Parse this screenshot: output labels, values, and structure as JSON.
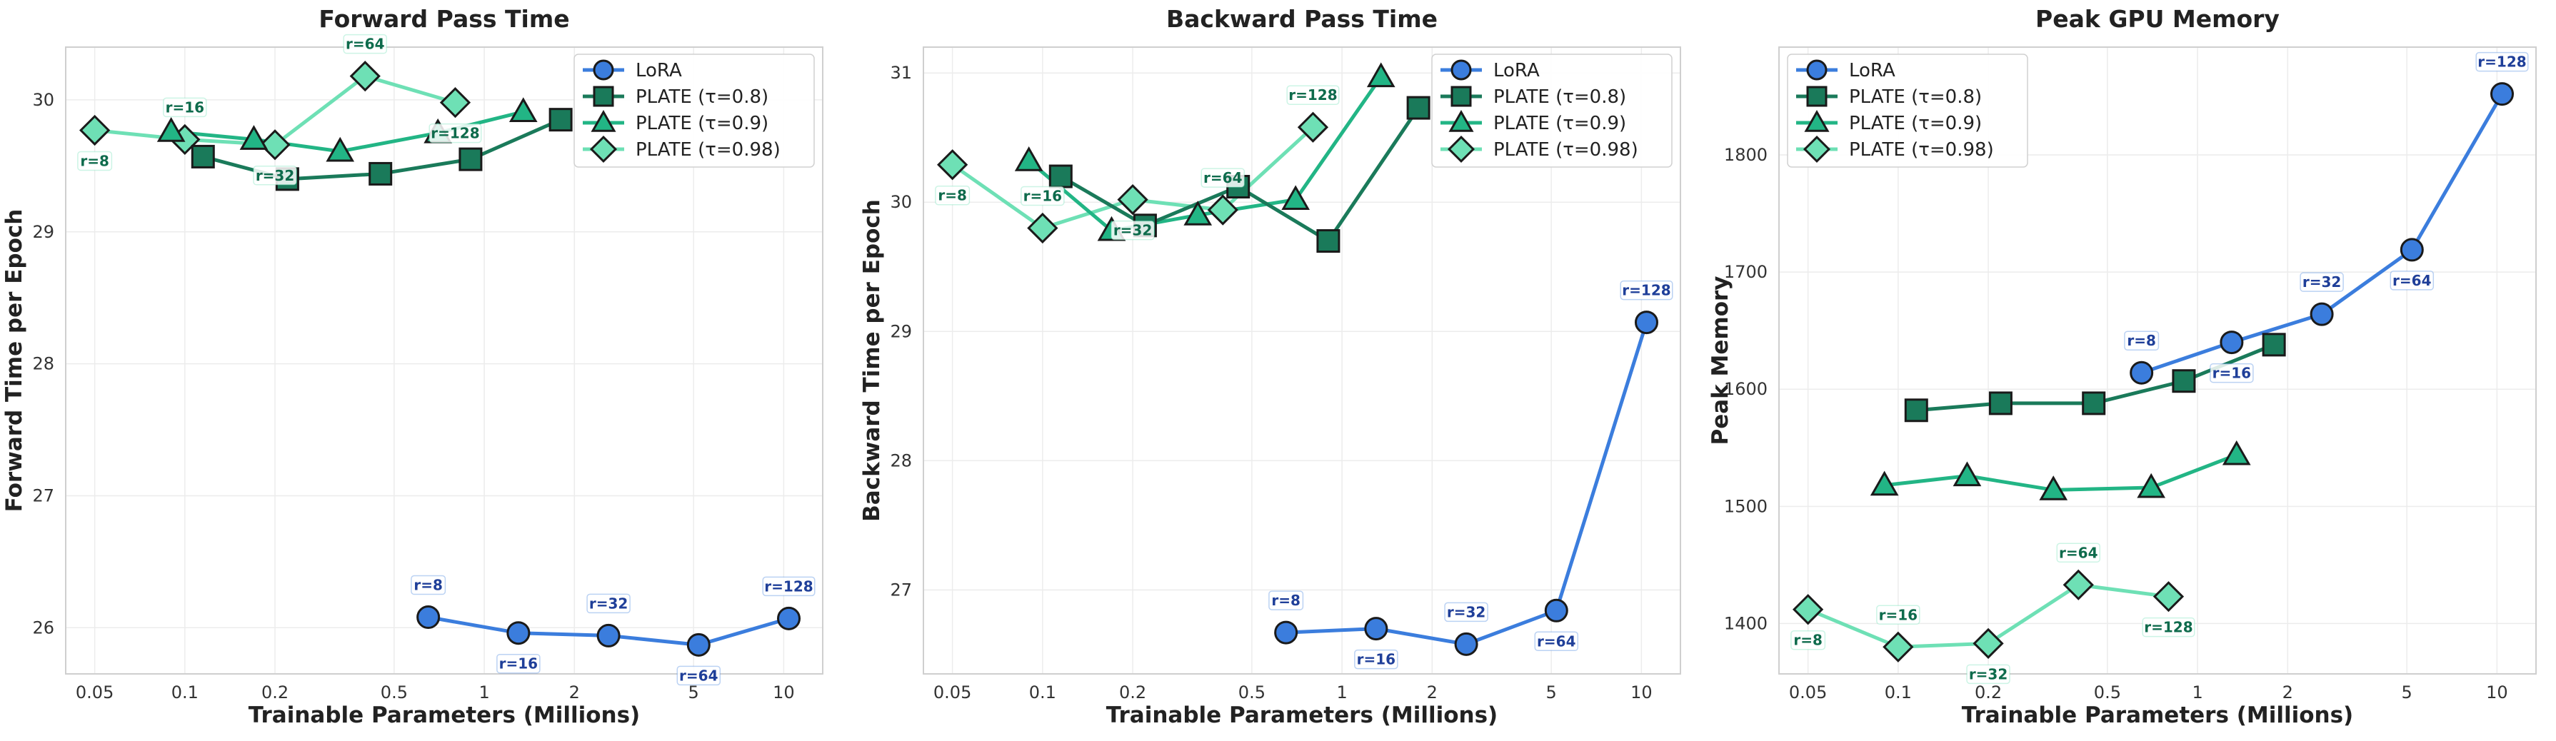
{
  "figure": {
    "background": "#ffffff"
  },
  "styles": {
    "LoRA": {
      "color": "#3b7ddd",
      "edge": "#1a1a1a",
      "marker": "circle",
      "label_color": "#1f3f99"
    },
    "PLATE (τ=0.8)": {
      "color": "#1a7a5a",
      "edge": "#1a1a1a",
      "marker": "square",
      "label_color": "#0e6b4c"
    },
    "PLATE (τ=0.9)": {
      "color": "#22b585",
      "edge": "#1a1a1a",
      "marker": "triangle",
      "label_color": "#0e6b4c"
    },
    "PLATE (τ=0.98)": {
      "color": "#6ee0b5",
      "edge": "#1a1a1a",
      "marker": "diamond",
      "label_color": "#0e6b4c"
    }
  },
  "chart_data": [
    {
      "type": "line",
      "title": "Forward Pass Time",
      "xlabel": "Trainable Parameters (Millions)",
      "ylabel": "Forward Time per Epoch",
      "xscale": "log",
      "xlim": [
        0.04,
        13.5
      ],
      "ylim": [
        25.65,
        30.4
      ],
      "xticks": [
        {
          "v": 0.05,
          "label": "0.05"
        },
        {
          "v": 0.1,
          "label": "0.1"
        },
        {
          "v": 0.2,
          "label": "0.2"
        },
        {
          "v": 0.5,
          "label": "0.5"
        },
        {
          "v": 1,
          "label": "1"
        },
        {
          "v": 2,
          "label": "2"
        },
        {
          "v": 5,
          "label": "5"
        },
        {
          "v": 10,
          "label": "10"
        }
      ],
      "yticks": [
        {
          "v": 26,
          "label": "26"
        },
        {
          "v": 27,
          "label": "27"
        },
        {
          "v": 28,
          "label": "28"
        },
        {
          "v": 29,
          "label": "29"
        },
        {
          "v": 30,
          "label": "30"
        }
      ],
      "grid": true,
      "legend": "top-right",
      "series": [
        {
          "name": "PLATE (τ=0.98)",
          "x": [
            0.05,
            0.1,
            0.2,
            0.4,
            0.8
          ],
          "y": [
            29.77,
            29.7,
            29.66,
            30.18,
            29.98
          ]
        },
        {
          "name": "PLATE (τ=0.9)",
          "x": [
            0.09,
            0.17,
            0.33,
            0.7,
            1.35
          ],
          "y": [
            29.76,
            29.7,
            29.61,
            29.75,
            29.91
          ]
        },
        {
          "name": "PLATE (τ=0.8)",
          "x": [
            0.115,
            0.22,
            0.45,
            0.9,
            1.8
          ],
          "y": [
            29.57,
            29.4,
            29.44,
            29.55,
            29.85
          ]
        },
        {
          "name": "LoRA",
          "x": [
            0.65,
            1.3,
            2.6,
            5.2,
            10.4
          ],
          "y": [
            26.08,
            25.96,
            25.94,
            25.87,
            26.07
          ]
        }
      ],
      "annotations": [
        {
          "text": "r=8",
          "series": "LoRA",
          "at": 0,
          "pos": "above"
        },
        {
          "text": "r=16",
          "series": "LoRA",
          "at": 1,
          "pos": "below"
        },
        {
          "text": "r=32",
          "series": "LoRA",
          "at": 2,
          "pos": "above"
        },
        {
          "text": "r=64",
          "series": "LoRA",
          "at": 3,
          "pos": "below"
        },
        {
          "text": "r=128",
          "series": "LoRA",
          "at": 4,
          "pos": "above"
        },
        {
          "text": "r=8",
          "series": "PLATE (τ=0.98)",
          "at": 0,
          "pos": "below"
        },
        {
          "text": "r=16",
          "series": "PLATE (τ=0.98)",
          "at": 1,
          "pos": "above"
        },
        {
          "text": "r=32",
          "series": "PLATE (τ=0.98)",
          "at": 2,
          "pos": "below"
        },
        {
          "text": "r=64",
          "series": "PLATE (τ=0.98)",
          "at": 3,
          "pos": "above"
        },
        {
          "text": "r=128",
          "series": "PLATE (τ=0.98)",
          "at": 4,
          "pos": "below"
        }
      ]
    },
    {
      "type": "line",
      "title": "Backward Pass Time",
      "xlabel": "Trainable Parameters (Millions)",
      "ylabel": "Backward Time per Epoch",
      "xscale": "log",
      "xlim": [
        0.04,
        13.5
      ],
      "ylim": [
        26.35,
        31.2
      ],
      "xticks": [
        {
          "v": 0.05,
          "label": "0.05"
        },
        {
          "v": 0.1,
          "label": "0.1"
        },
        {
          "v": 0.2,
          "label": "0.2"
        },
        {
          "v": 0.5,
          "label": "0.5"
        },
        {
          "v": 1,
          "label": "1"
        },
        {
          "v": 2,
          "label": "2"
        },
        {
          "v": 5,
          "label": "5"
        },
        {
          "v": 10,
          "label": "10"
        }
      ],
      "yticks": [
        {
          "v": 27,
          "label": "27"
        },
        {
          "v": 28,
          "label": "28"
        },
        {
          "v": 29,
          "label": "29"
        },
        {
          "v": 30,
          "label": "30"
        },
        {
          "v": 31,
          "label": "31"
        }
      ],
      "grid": true,
      "legend": "top-right",
      "series": [
        {
          "name": "PLATE (τ=0.98)",
          "x": [
            0.05,
            0.1,
            0.2,
            0.4,
            0.8
          ],
          "y": [
            30.29,
            29.8,
            30.02,
            29.94,
            30.58
          ]
        },
        {
          "name": "PLATE (τ=0.9)",
          "x": [
            0.09,
            0.17,
            0.33,
            0.7,
            1.35
          ],
          "y": [
            30.32,
            29.78,
            29.9,
            30.02,
            30.97
          ]
        },
        {
          "name": "PLATE (τ=0.8)",
          "x": [
            0.115,
            0.22,
            0.45,
            0.9,
            1.8
          ],
          "y": [
            30.2,
            29.82,
            30.12,
            29.7,
            30.73
          ]
        },
        {
          "name": "LoRA",
          "x": [
            0.65,
            1.3,
            2.6,
            5.2,
            10.4
          ],
          "y": [
            26.67,
            26.7,
            26.58,
            26.84,
            29.07
          ]
        }
      ],
      "annotations": [
        {
          "text": "r=8",
          "series": "LoRA",
          "at": 0,
          "pos": "above"
        },
        {
          "text": "r=16",
          "series": "LoRA",
          "at": 1,
          "pos": "below"
        },
        {
          "text": "r=32",
          "series": "LoRA",
          "at": 2,
          "pos": "above"
        },
        {
          "text": "r=64",
          "series": "LoRA",
          "at": 3,
          "pos": "below"
        },
        {
          "text": "r=128",
          "series": "LoRA",
          "at": 4,
          "pos": "above"
        },
        {
          "text": "r=8",
          "series": "PLATE (τ=0.98)",
          "at": 0,
          "pos": "below"
        },
        {
          "text": "r=16",
          "series": "PLATE (τ=0.98)",
          "at": 1,
          "pos": "above"
        },
        {
          "text": "r=32",
          "series": "PLATE (τ=0.98)",
          "at": 2,
          "pos": "below"
        },
        {
          "text": "r=64",
          "series": "PLATE (τ=0.98)",
          "at": 3,
          "pos": "above"
        },
        {
          "text": "r=128",
          "series": "PLATE (τ=0.98)",
          "at": 4,
          "pos": "above"
        }
      ]
    },
    {
      "type": "line",
      "title": "Peak GPU Memory",
      "xlabel": "Trainable Parameters (Millions)",
      "ylabel": "Peak Memory",
      "xscale": "log",
      "xlim": [
        0.04,
        13.5
      ],
      "ylim": [
        1357,
        1892
      ],
      "xticks": [
        {
          "v": 0.05,
          "label": "0.05"
        },
        {
          "v": 0.1,
          "label": "0.1"
        },
        {
          "v": 0.2,
          "label": "0.2"
        },
        {
          "v": 0.5,
          "label": "0.5"
        },
        {
          "v": 1,
          "label": "1"
        },
        {
          "v": 2,
          "label": "2"
        },
        {
          "v": 5,
          "label": "5"
        },
        {
          "v": 10,
          "label": "10"
        }
      ],
      "yticks": [
        {
          "v": 1400,
          "label": "1400"
        },
        {
          "v": 1500,
          "label": "1500"
        },
        {
          "v": 1600,
          "label": "1600"
        },
        {
          "v": 1700,
          "label": "1700"
        },
        {
          "v": 1800,
          "label": "1800"
        }
      ],
      "grid": true,
      "legend": "top-left",
      "series": [
        {
          "name": "PLATE (τ=0.98)",
          "x": [
            0.05,
            0.1,
            0.2,
            0.4,
            0.8
          ],
          "y": [
            1412,
            1380,
            1383,
            1433,
            1423
          ]
        },
        {
          "name": "PLATE (τ=0.9)",
          "x": [
            0.09,
            0.17,
            0.33,
            0.7,
            1.35
          ],
          "y": [
            1518,
            1526,
            1514,
            1516,
            1544
          ]
        },
        {
          "name": "PLATE (τ=0.8)",
          "x": [
            0.115,
            0.22,
            0.45,
            0.9,
            1.8
          ],
          "y": [
            1582,
            1588,
            1588,
            1607,
            1638
          ]
        },
        {
          "name": "LoRA",
          "x": [
            0.65,
            1.3,
            2.6,
            5.2,
            10.4
          ],
          "y": [
            1614,
            1640,
            1664,
            1719,
            1852
          ]
        }
      ],
      "annotations": [
        {
          "text": "r=8",
          "series": "LoRA",
          "at": 0,
          "pos": "above"
        },
        {
          "text": "r=16",
          "series": "LoRA",
          "at": 1,
          "pos": "below"
        },
        {
          "text": "r=32",
          "series": "LoRA",
          "at": 2,
          "pos": "above"
        },
        {
          "text": "r=64",
          "series": "LoRA",
          "at": 3,
          "pos": "below"
        },
        {
          "text": "r=128",
          "series": "LoRA",
          "at": 4,
          "pos": "above"
        },
        {
          "text": "r=8",
          "series": "PLATE (τ=0.98)",
          "at": 0,
          "pos": "below"
        },
        {
          "text": "r=16",
          "series": "PLATE (τ=0.98)",
          "at": 1,
          "pos": "above"
        },
        {
          "text": "r=32",
          "series": "PLATE (τ=0.98)",
          "at": 2,
          "pos": "below"
        },
        {
          "text": "r=64",
          "series": "PLATE (τ=0.98)",
          "at": 3,
          "pos": "above"
        },
        {
          "text": "r=128",
          "series": "PLATE (τ=0.98)",
          "at": 4,
          "pos": "below"
        }
      ]
    }
  ],
  "legend_order": [
    "LoRA",
    "PLATE (τ=0.8)",
    "PLATE (τ=0.9)",
    "PLATE (τ=0.98)"
  ]
}
